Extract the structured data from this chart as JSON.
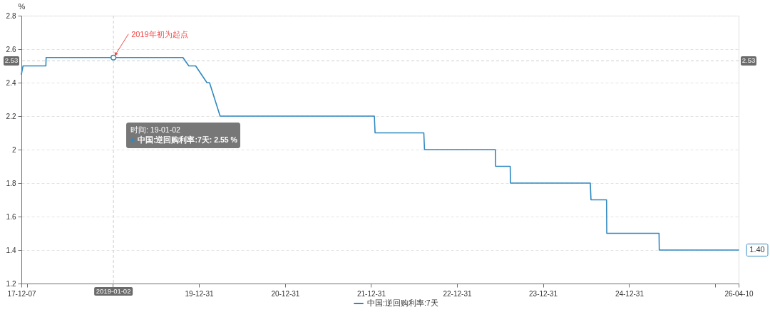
{
  "chart_data": {
    "type": "line",
    "ylabel": "%",
    "x": [
      "2017-12-07",
      "2017-12-14",
      "2018-03-21",
      "2018-03-22",
      "2019-01-02",
      "2019-10-24",
      "2019-11-18",
      "2019-12-17",
      "2020-02-03",
      "2020-02-14",
      "2020-03-30",
      "2022-01-14",
      "2022-01-17",
      "2022-08-12",
      "2022-08-15",
      "2023-06-12",
      "2023-06-13",
      "2023-08-14",
      "2023-08-15",
      "2024-07-19",
      "2024-07-22",
      "2024-09-26",
      "2024-09-27",
      "2025-05-07",
      "2025-05-08",
      "2026-04-10"
    ],
    "series": [
      {
        "name": "中国:逆回购利率:7天",
        "color": "#2f88bf",
        "values": [
          2.45,
          2.5,
          2.5,
          2.55,
          2.55,
          2.55,
          2.5,
          2.5,
          2.4,
          2.4,
          2.2,
          2.2,
          2.1,
          2.1,
          2,
          2,
          1.9,
          1.9,
          1.8,
          1.8,
          1.7,
          1.7,
          1.5,
          1.5,
          1.4,
          1.4
        ],
        "value_labels": [
          null,
          null,
          null,
          null,
          null,
          null,
          null,
          null,
          null,
          null,
          null,
          null,
          null,
          null,
          null,
          null,
          null,
          null,
          null,
          null,
          null,
          null,
          null,
          null,
          null,
          "1.40"
        ]
      }
    ],
    "xlim": [
      "2017-12-07",
      "2026-04-10"
    ],
    "xticks": [
      {
        "value": "2017-12-07",
        "label": "17-12-07"
      },
      {
        "value": "2017-12-31",
        "label": null
      },
      {
        "value": "2018-12-31",
        "label": null
      },
      {
        "value": "2019-12-31",
        "label": "19-12-31"
      },
      {
        "value": "2020-12-31",
        "label": "20-12-31"
      },
      {
        "value": "2021-12-31",
        "label": "21-12-31"
      },
      {
        "value": "2022-12-31",
        "label": "22-12-31"
      },
      {
        "value": "2023-12-31",
        "label": "23-12-31"
      },
      {
        "value": "2024-12-31",
        "label": "24-12-31"
      },
      {
        "value": "2025-12-31",
        "label": null
      },
      {
        "value": "2026-04-10",
        "label": "26-04-10"
      }
    ],
    "ylim": [
      1.2,
      2.8
    ],
    "yticks": [
      1.2,
      1.4,
      1.6,
      1.8,
      2,
      2.2,
      2.4,
      2.6,
      2.8
    ],
    "grid": "y",
    "legend": "bottom",
    "ref_lines": [
      {
        "axis": "x",
        "value": "2019-01-02",
        "label": "2019-01-02",
        "color": "#cccccc",
        "line_style": "dashed"
      },
      {
        "axis": "y",
        "value": 2.53,
        "label": "2.53",
        "color": "#cccccc",
        "line_style": "dashed"
      }
    ],
    "annotations": [
      {
        "text": "2019年初为起点",
        "x": "2019-01-02",
        "y": 2.55
      },
      "时间: 19-01-02",
      "中国:逆回购利率:7天: 2.55 %"
    ]
  }
}
